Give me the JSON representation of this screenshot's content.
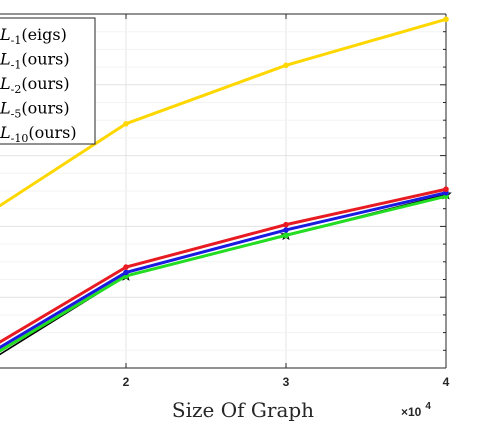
{
  "chart_data": {
    "type": "line",
    "xlabel": "Size Of Graph",
    "x_exponent": {
      "times": "×10",
      "power": "4"
    },
    "x_ticks": [
      "2",
      "3",
      "4"
    ],
    "xlim": [
      1.2,
      4.0
    ],
    "grid": true,
    "legend_position": "top-left",
    "series": [
      {
        "name": "L-1(eigs)",
        "legend": {
          "base": "L",
          "sub": "-1",
          "tail": "(eigs)"
        },
        "color": "#FFD700",
        "marker": "dot",
        "x": [
          1.2,
          2,
          3,
          4
        ],
        "y": [
          0.455,
          0.69,
          0.855,
          0.985
        ]
      },
      {
        "name": "L-1(ours)",
        "legend": {
          "base": "L",
          "sub": "-1",
          "tail": "(ours)"
        },
        "color": "#E81B23",
        "marker": "dot",
        "x": [
          1.2,
          2,
          3,
          4
        ],
        "y": [
          0.07,
          0.285,
          0.405,
          0.505
        ]
      },
      {
        "name": "L-2(ours)",
        "legend": {
          "base": "L",
          "sub": "-2",
          "tail": "(ours)"
        },
        "color": "#1A1AE0",
        "marker": "dot",
        "x": [
          1.2,
          2,
          3,
          4
        ],
        "y": [
          0.055,
          0.27,
          0.39,
          0.495
        ]
      },
      {
        "name": "L-5(ours)",
        "legend": {
          "base": "L",
          "sub": "-5",
          "tail": "(ours)"
        },
        "color": "#22DD22",
        "marker": "dot",
        "x": [
          1.2,
          2,
          3,
          4
        ],
        "y": [
          0.045,
          0.26,
          0.375,
          0.485
        ]
      },
      {
        "name": "L-10(ours)",
        "legend": {
          "base": "L",
          "sub": "-10",
          "tail": "(ours)"
        },
        "color": "#000000",
        "marker": "star",
        "x": [
          1.2,
          2,
          3,
          4
        ],
        "y": [
          0.035,
          0.26,
          0.375,
          0.49
        ]
      }
    ]
  }
}
